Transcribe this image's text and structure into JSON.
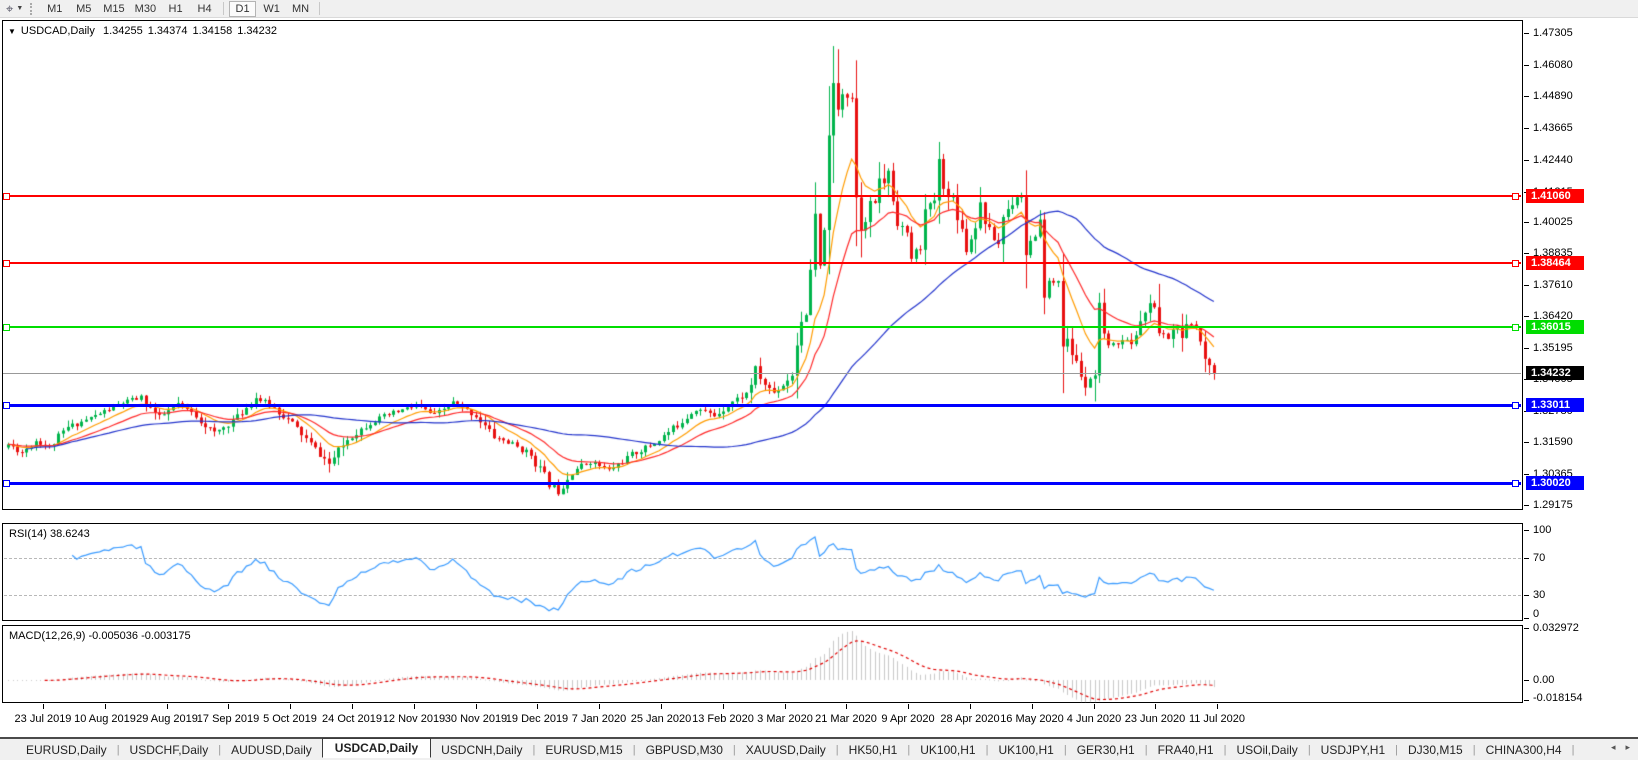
{
  "toolbar": {
    "cursor_tool_icon": "crosshair-icon",
    "dropdown_icon": "triangle-down-icon",
    "timeframes": [
      "M1",
      "M5",
      "M15",
      "M30",
      "H1",
      "H4",
      "D1",
      "W1",
      "MN"
    ],
    "active_timeframe": "D1"
  },
  "chart": {
    "header": {
      "dropdown_icon": "triangle-down-icon",
      "symbol": "USDCAD,Daily",
      "open": "1.34255",
      "high": "1.34374",
      "low": "1.34158",
      "close": "1.34232"
    },
    "price_axis_ticks": [
      "1.47305",
      "1.46080",
      "1.44890",
      "1.43665",
      "1.42440",
      "1.41215",
      "1.40025",
      "1.38835",
      "1.37610",
      "1.36420",
      "1.35195",
      "1.34005",
      "1.32780",
      "1.31590",
      "1.30365",
      "1.29175"
    ],
    "levels": [
      {
        "label": "1.41060",
        "value": 1.4106,
        "color": "#ff0000",
        "thickness": 2
      },
      {
        "label": "1.38464",
        "value": 1.38464,
        "color": "#ff0000",
        "thickness": 2
      },
      {
        "label": "1.36015",
        "value": 1.36015,
        "color": "#00dd00",
        "thickness": 2
      },
      {
        "label": "1.33011",
        "value": 1.33011,
        "color": "#0000ff",
        "thickness": 3
      },
      {
        "label": "1.30020",
        "value": 1.3002,
        "color": "#0000ff",
        "thickness": 3
      }
    ],
    "current_price": {
      "label": "1.34232",
      "value": 1.34232
    },
    "date_axis": [
      "23 Jul 2019",
      "10 Aug 2019",
      "29 Aug 2019",
      "17 Sep 2019",
      "5 Oct 2019",
      "24 Oct 2019",
      "12 Nov 2019",
      "30 Nov 2019",
      "19 Dec 2019",
      "7 Jan 2020",
      "25 Jan 2020",
      "13 Feb 2020",
      "3 Mar 2020",
      "21 Mar 2020",
      "9 Apr 2020",
      "28 Apr 2020",
      "16 May 2020",
      "4 Jun 2020",
      "23 Jun 2020",
      "11 Jul 2020"
    ],
    "candles": {
      "count": 264,
      "waypoints": [
        [
          0,
          1.315
        ],
        [
          3,
          1.312
        ],
        [
          6,
          1.3165
        ],
        [
          9,
          1.314
        ],
        [
          13,
          1.3215
        ],
        [
          19,
          1.326
        ],
        [
          25,
          1.331
        ],
        [
          29,
          1.333
        ],
        [
          33,
          1.325
        ],
        [
          37,
          1.3305
        ],
        [
          41,
          1.326
        ],
        [
          45,
          1.319
        ],
        [
          50,
          1.3255
        ],
        [
          54,
          1.333
        ],
        [
          58,
          1.329
        ],
        [
          62,
          1.323
        ],
        [
          66,
          1.315
        ],
        [
          70,
          1.3075
        ],
        [
          74,
          1.317
        ],
        [
          79,
          1.3235
        ],
        [
          84,
          1.327
        ],
        [
          89,
          1.33
        ],
        [
          93,
          1.326
        ],
        [
          97,
          1.331
        ],
        [
          102,
          1.326
        ],
        [
          106,
          1.318
        ],
        [
          110,
          1.315
        ],
        [
          114,
          1.311
        ],
        [
          118,
          1.3
        ],
        [
          120,
          1.297
        ],
        [
          123,
          1.305
        ],
        [
          127,
          1.3085
        ],
        [
          131,
          1.305
        ],
        [
          136,
          1.311
        ],
        [
          141,
          1.3155
        ],
        [
          146,
          1.3225
        ],
        [
          150,
          1.329
        ],
        [
          154,
          1.326
        ],
        [
          158,
          1.3315
        ],
        [
          161,
          1.3345
        ],
        [
          163,
          1.343
        ],
        [
          165,
          1.338
        ],
        [
          167,
          1.335
        ],
        [
          169,
          1.338
        ],
        [
          171,
          1.342
        ],
        [
          173,
          1.366
        ],
        [
          174,
          1.363
        ],
        [
          176,
          1.399
        ],
        [
          177,
          1.38
        ],
        [
          179,
          1.426
        ],
        [
          180,
          1.451
        ],
        [
          181,
          1.445
        ],
        [
          182,
          1.452
        ],
        [
          183,
          1.449
        ],
        [
          184,
          1.448
        ],
        [
          185,
          1.418
        ],
        [
          186,
          1.403
        ],
        [
          187,
          1.399
        ],
        [
          188,
          1.409
        ],
        [
          189,
          1.406
        ],
        [
          190,
          1.419
        ],
        [
          191,
          1.414
        ],
        [
          192,
          1.421
        ],
        [
          193,
          1.409
        ],
        [
          194,
          1.402
        ],
        [
          196,
          1.395
        ],
        [
          197,
          1.387
        ],
        [
          199,
          1.391
        ],
        [
          200,
          1.403
        ],
        [
          202,
          1.409
        ],
        [
          203,
          1.422
        ],
        [
          204,
          1.416
        ],
        [
          205,
          1.409
        ],
        [
          206,
          1.41
        ],
        [
          207,
          1.404
        ],
        [
          209,
          1.391
        ],
        [
          210,
          1.394
        ],
        [
          212,
          1.407
        ],
        [
          214,
          1.396
        ],
        [
          216,
          1.392
        ],
        [
          217,
          1.403
        ],
        [
          219,
          1.408
        ],
        [
          220,
          1.411
        ],
        [
          221,
          1.41
        ],
        [
          222,
          1.392
        ],
        [
          224,
          1.394
        ],
        [
          225,
          1.399
        ],
        [
          226,
          1.378
        ],
        [
          228,
          1.377
        ],
        [
          229,
          1.378
        ],
        [
          230,
          1.358
        ],
        [
          232,
          1.35
        ],
        [
          234,
          1.342
        ],
        [
          235,
          1.337
        ],
        [
          237,
          1.341
        ],
        [
          238,
          1.362
        ],
        [
          239,
          1.354
        ],
        [
          241,
          1.353
        ],
        [
          243,
          1.356
        ],
        [
          245,
          1.353
        ],
        [
          247,
          1.363
        ],
        [
          249,
          1.368
        ],
        [
          250,
          1.368
        ],
        [
          251,
          1.358
        ],
        [
          253,
          1.356
        ],
        [
          255,
          1.361
        ],
        [
          256,
          1.353
        ],
        [
          257,
          1.359
        ],
        [
          258,
          1.361
        ],
        [
          259,
          1.36
        ],
        [
          260,
          1.356
        ],
        [
          261,
          1.35
        ],
        [
          262,
          1.345
        ],
        [
          263,
          1.3423
        ]
      ],
      "wick_overrides": {
        "70": {
          "low": 1.3042
        },
        "120": {
          "low": 1.2952
        },
        "181": {
          "high": 1.4668
        },
        "237": {
          "low": 1.3315
        }
      }
    },
    "moving_averages": [
      {
        "type": "ema",
        "period": 10,
        "color": "#ff9c00"
      },
      {
        "type": "ema",
        "period": 21,
        "color": "#ff2a2a"
      },
      {
        "type": "sma",
        "period": 55,
        "color": "#2233cc"
      }
    ],
    "colors": {
      "bull": "#00b44c",
      "bear": "#e81010",
      "price_line": "#999999"
    }
  },
  "rsi": {
    "name": "RSI(14)",
    "value": "38.6243",
    "axis_labels": [
      "100",
      "70",
      "30",
      "0"
    ],
    "axis_values": [
      100,
      70,
      30,
      0
    ],
    "guides": [
      70,
      30
    ],
    "line_color": "#3a9bff"
  },
  "macd": {
    "name": "MACD(12,26,9)",
    "values": "-0.005036 -0.003175",
    "axis_labels": [
      "0.032972",
      "0.00",
      "-0.018154"
    ],
    "axis_values": [
      0.032972,
      0,
      -0.018154
    ],
    "histogram_color": "#c9c9c9",
    "signal_color": "#e00000"
  },
  "tabs": {
    "items": [
      "EURUSD,Daily",
      "USDCHF,Daily",
      "AUDUSD,Daily",
      "USDCAD,Daily",
      "USDCNH,Daily",
      "EURUSD,M15",
      "GBPUSD,M30",
      "XAUUSD,Daily",
      "HK50,H1",
      "UK100,H1",
      "UK100,H1",
      "GER30,H1",
      "FRA40,H1",
      "USOil,Daily",
      "USDJPY,H1",
      "DJ30,M15",
      "CHINA300,H4"
    ],
    "active_index": 3,
    "scroll_left_icon": "triangle-left-icon",
    "scroll_right_icon": "triangle-right-icon"
  }
}
